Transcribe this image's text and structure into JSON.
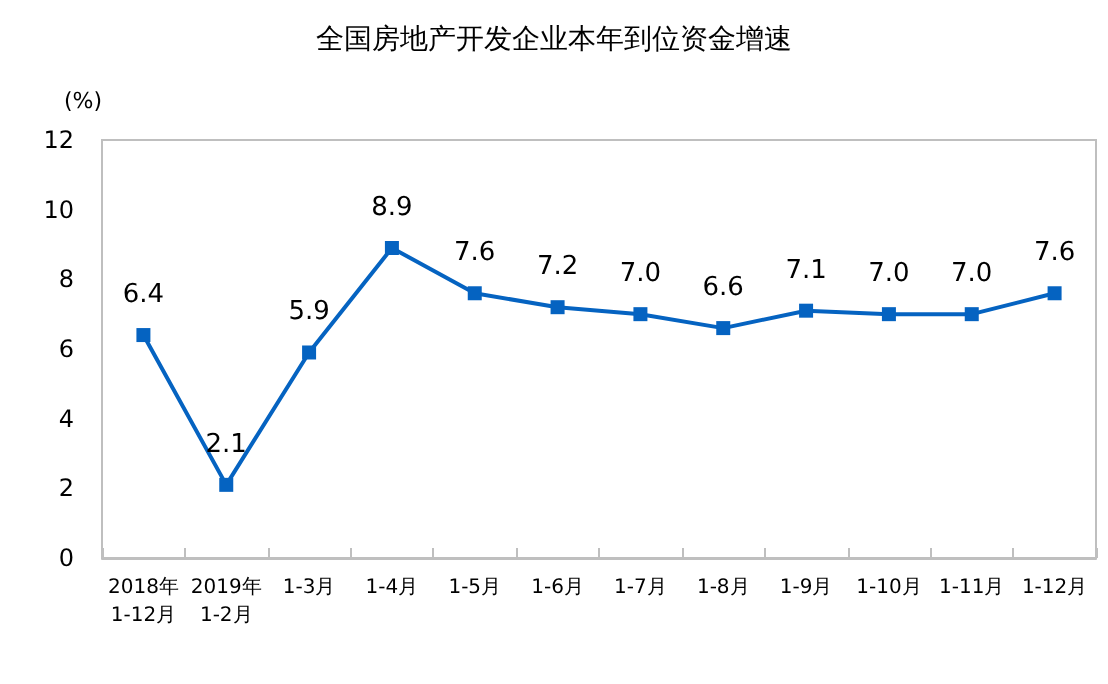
{
  "chart_data": {
    "type": "line",
    "title": "全国房地产开发企业本年到位资金增速",
    "ylabel": "(%)",
    "categories": [
      "2018年\n1-12月",
      "2019年\n1-2月",
      "1-3月",
      "1-4月",
      "1-5月",
      "1-6月",
      "1-7月",
      "1-8月",
      "1-9月",
      "1-10月",
      "1-11月",
      "1-12月"
    ],
    "series": [
      {
        "color": "#0563c1",
        "values": [
          6.4,
          2.1,
          5.9,
          8.9,
          7.6,
          7.2,
          7.0,
          6.6,
          7.1,
          7.0,
          7.0,
          7.6
        ],
        "value_labels": [
          "6.4",
          "2.1",
          "5.9",
          "8.9",
          "7.6",
          "7.2",
          "7.0",
          "6.6",
          "7.1",
          "7.0",
          "7.0",
          "7.6"
        ]
      }
    ],
    "ylim": [
      0,
      12
    ],
    "yticks": [
      0,
      2,
      4,
      6,
      8,
      10,
      12
    ],
    "grid": false,
    "marker": "square",
    "line_style": "solid"
  }
}
